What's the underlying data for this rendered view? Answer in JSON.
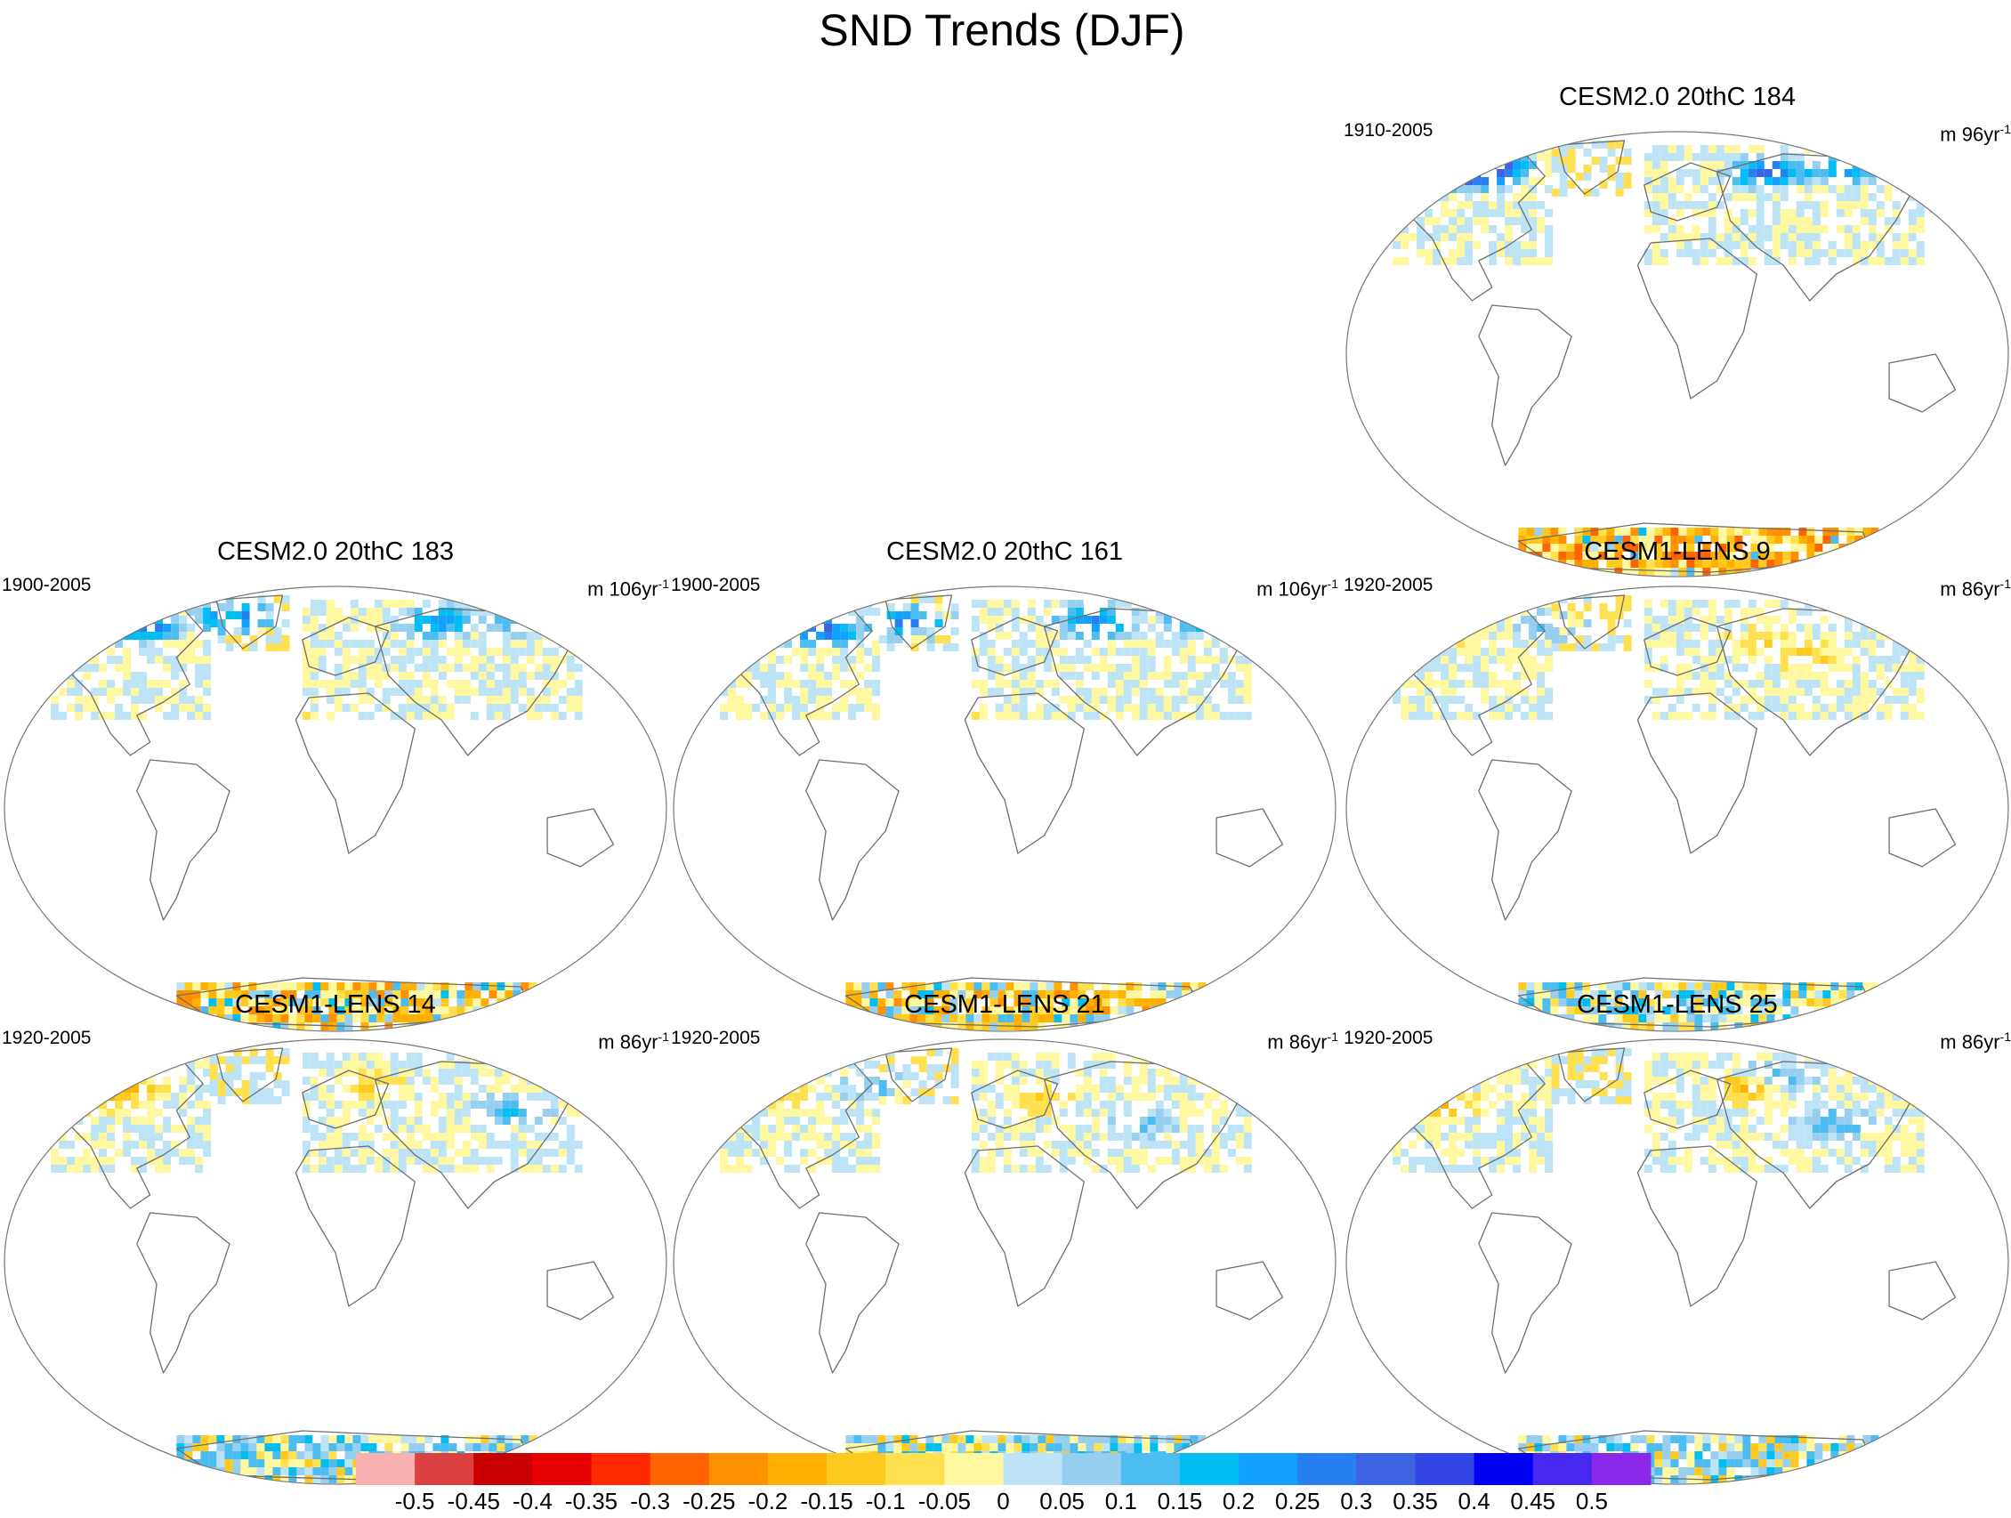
{
  "chart_data": {
    "type": "heatmap",
    "title": "SND Trends (DJF)",
    "colorbar": {
      "colors": [
        "#f9b0b0",
        "#dc4040",
        "#c80000",
        "#e60000",
        "#ff2800",
        "#ff6400",
        "#ff9000",
        "#ffb000",
        "#ffca20",
        "#ffe050",
        "#fff8a0",
        "#bde4f6",
        "#97cff0",
        "#4dbcf0",
        "#00bef2",
        "#14a0ff",
        "#2880f0",
        "#3c64e0",
        "#3246e6",
        "#0000f5",
        "#4628f0",
        "#8c28eb"
      ],
      "labels": [
        "-0.5",
        "-0.45",
        "-0.4",
        "-0.35",
        "-0.3",
        "-0.25",
        "-0.2",
        "-0.15",
        "-0.1",
        "-0.05",
        "0",
        "0.05",
        "0.1",
        "0.15",
        "0.2",
        "0.25",
        "0.3",
        "0.35",
        "0.4",
        "0.45",
        "0.5"
      ]
    },
    "panels": [
      {
        "id": "cesm2-184",
        "title": "CESM2.0 20thC 184",
        "period": "1910-2005",
        "units_base": "m 96yr",
        "units_exp": "-1",
        "antarctic_level": 0.75,
        "patches": [
          [
            0.18,
            0.09,
            6
          ],
          [
            0.22,
            0.07,
            7
          ],
          [
            0.63,
            0.08,
            7
          ],
          [
            0.75,
            0.07,
            5
          ],
          [
            0.4,
            0.34,
            -2
          ]
        ]
      },
      {
        "id": "cesm2-183",
        "title": "CESM2.0 20thC 183",
        "period": "1900-2005",
        "units_base": "m 106yr",
        "units_exp": "-1",
        "antarctic_level": 0.55,
        "patches": [
          [
            0.2,
            0.08,
            7
          ],
          [
            0.34,
            0.06,
            6
          ],
          [
            0.65,
            0.07,
            5
          ],
          [
            0.78,
            0.06,
            4
          ],
          [
            0.42,
            0.31,
            -2
          ]
        ]
      },
      {
        "id": "cesm2-161",
        "title": "CESM2.0 20thC 161",
        "period": "1900-2005",
        "units_base": "m 106yr",
        "units_exp": "-1",
        "antarctic_level": 0.55,
        "patches": [
          [
            0.22,
            0.09,
            7
          ],
          [
            0.35,
            0.07,
            6
          ],
          [
            0.63,
            0.07,
            6
          ],
          [
            0.79,
            0.06,
            5
          ],
          [
            0.4,
            0.3,
            -2
          ]
        ]
      },
      {
        "id": "lens-9",
        "title": "CESM1-LENS 9",
        "period": "1920-2005",
        "units_base": "m 86yr",
        "units_exp": "-1",
        "antarctic_level": 0.2,
        "patches": [
          [
            0.15,
            0.1,
            -2
          ],
          [
            0.3,
            0.08,
            2
          ],
          [
            0.62,
            0.12,
            -2
          ],
          [
            0.7,
            0.15,
            -2
          ]
        ]
      },
      {
        "id": "lens-14",
        "title": "CESM1-LENS 14",
        "period": "1920-2005",
        "units_base": "m 86yr",
        "units_exp": "-1",
        "antarctic_level": 0.2,
        "patches": [
          [
            0.14,
            0.12,
            -3
          ],
          [
            0.2,
            0.1,
            -2
          ],
          [
            0.55,
            0.1,
            -2
          ],
          [
            0.76,
            0.15,
            3
          ]
        ]
      },
      {
        "id": "lens-21",
        "title": "CESM1-LENS 21",
        "period": "1920-2005",
        "units_base": "m 86yr",
        "units_exp": "-1",
        "antarctic_level": 0.2,
        "patches": [
          [
            0.15,
            0.12,
            -2
          ],
          [
            0.3,
            0.1,
            2
          ],
          [
            0.55,
            0.12,
            -2
          ],
          [
            0.7,
            0.18,
            2
          ]
        ]
      },
      {
        "id": "lens-25",
        "title": "CESM1-LENS 25",
        "period": "1920-2005",
        "units_base": "m 86yr",
        "units_exp": "-1",
        "antarctic_level": 0.2,
        "patches": [
          [
            0.14,
            0.14,
            -3
          ],
          [
            0.6,
            0.1,
            -4
          ],
          [
            0.73,
            0.18,
            3
          ],
          [
            0.64,
            0.08,
            3
          ]
        ]
      }
    ]
  }
}
